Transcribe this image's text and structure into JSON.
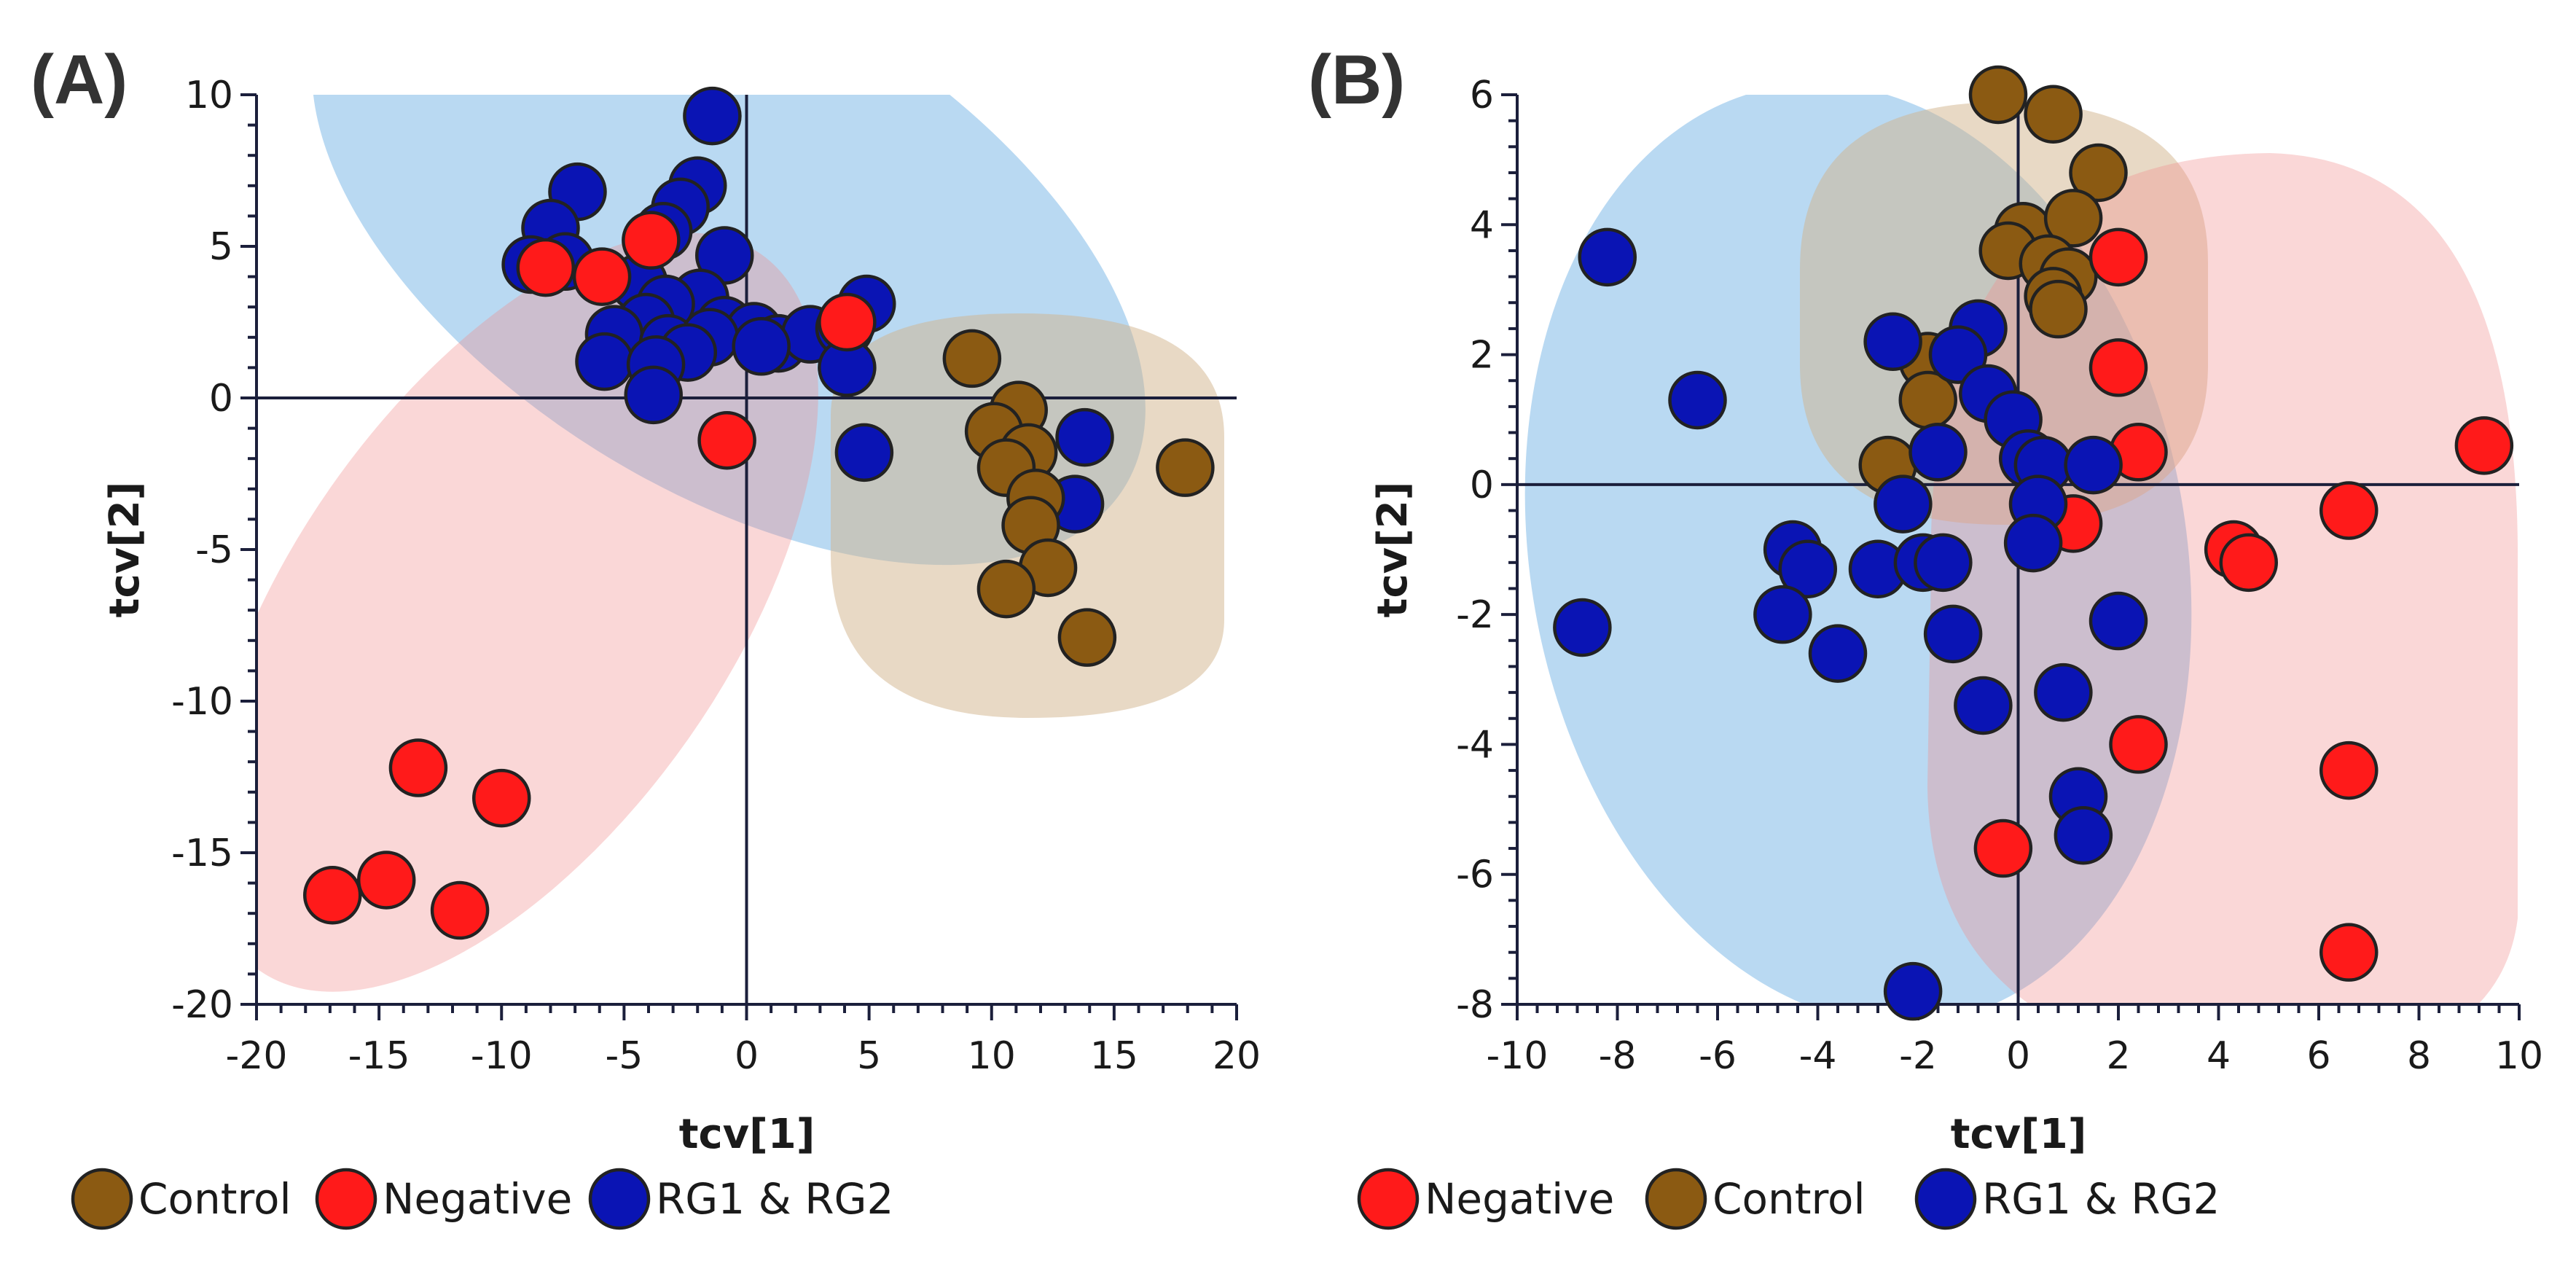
{
  "chart_data": [
    {
      "type": "scatter",
      "panel_label": "(A)",
      "xlabel": "tcv[1]",
      "ylabel": "tcv[2]",
      "xlim": [
        -20,
        20
      ],
      "ylim": [
        -20,
        10
      ],
      "xticks": [
        -20,
        -15,
        -10,
        -5,
        0,
        5,
        10,
        15,
        20
      ],
      "yticks": [
        10,
        5,
        0,
        -5,
        -10,
        -15,
        -20
      ],
      "colors": {
        "Control": "#8b5a12",
        "Negative": "#ff1a1a",
        "RG1 & RG2": "#0a14b4"
      },
      "legend": [
        "Control",
        "Negative",
        "RG1 & RG2"
      ],
      "legend_position": "bottom",
      "series": [
        {
          "name": "RG1 & RG2",
          "points": [
            [
              -1.4,
              9.3
            ],
            [
              -6.9,
              6.8
            ],
            [
              -8.0,
              5.6
            ],
            [
              -2.0,
              7.0
            ],
            [
              -2.7,
              6.3
            ],
            [
              -3.4,
              5.5
            ],
            [
              -0.9,
              4.7
            ],
            [
              -8.8,
              4.4
            ],
            [
              -7.4,
              4.5
            ],
            [
              -4.4,
              3.8
            ],
            [
              -1.9,
              3.3
            ],
            [
              -3.3,
              3.1
            ],
            [
              -4.1,
              2.5
            ],
            [
              -5.4,
              2.1
            ],
            [
              -3.2,
              1.8
            ],
            [
              -0.9,
              2.4
            ],
            [
              0.3,
              2.2
            ],
            [
              1.3,
              1.8
            ],
            [
              2.6,
              2.1
            ],
            [
              4.0,
              2.3
            ],
            [
              4.9,
              3.1
            ],
            [
              -1.5,
              2.0
            ],
            [
              -2.4,
              1.5
            ],
            [
              -5.8,
              1.2
            ],
            [
              -3.7,
              1.1
            ],
            [
              -3.8,
              0.1
            ],
            [
              0.6,
              1.7
            ],
            [
              4.1,
              1.0
            ],
            [
              4.8,
              -1.8
            ],
            [
              13.8,
              -1.3
            ],
            [
              13.4,
              -3.5
            ]
          ]
        },
        {
          "name": "Control",
          "points": [
            [
              9.2,
              1.3
            ],
            [
              11.1,
              -0.4
            ],
            [
              10.1,
              -1.1
            ],
            [
              11.5,
              -1.8
            ],
            [
              10.6,
              -2.3
            ],
            [
              17.9,
              -2.3
            ],
            [
              11.8,
              -3.3
            ],
            [
              11.6,
              -4.2
            ],
            [
              12.3,
              -5.6
            ],
            [
              10.6,
              -6.3
            ],
            [
              13.9,
              -7.9
            ]
          ]
        },
        {
          "name": "Negative",
          "points": [
            [
              -8.2,
              4.3
            ],
            [
              -5.9,
              4.0
            ],
            [
              -3.9,
              5.2
            ],
            [
              4.1,
              2.5
            ],
            [
              -0.8,
              -1.4
            ],
            [
              -13.4,
              -12.2
            ],
            [
              -10.0,
              -13.2
            ],
            [
              -16.9,
              -16.4
            ],
            [
              -14.7,
              -15.9
            ],
            [
              -11.7,
              -16.9
            ]
          ]
        }
      ]
    },
    {
      "type": "scatter",
      "panel_label": "(B)",
      "xlabel": "tcv[1]",
      "ylabel": "tcv[2]",
      "xlim": [
        -10,
        10
      ],
      "ylim": [
        -8,
        6
      ],
      "xticks": [
        -10,
        -8,
        -6,
        -4,
        -2,
        0,
        2,
        4,
        6,
        8,
        10
      ],
      "yticks": [
        6,
        4,
        2,
        0,
        -2,
        -4,
        -6,
        -8
      ],
      "colors": {
        "Negative": "#ff1a1a",
        "Control": "#8b5a12",
        "RG1 & RG2": "#0a14b4"
      },
      "legend": [
        "Negative",
        "Control",
        "RG1 & RG2"
      ],
      "legend_position": "bottom",
      "series": [
        {
          "name": "Control",
          "points": [
            [
              -0.4,
              6.0
            ],
            [
              0.7,
              5.7
            ],
            [
              1.6,
              4.8
            ],
            [
              0.1,
              3.9
            ],
            [
              1.1,
              4.1
            ],
            [
              -0.2,
              3.6
            ],
            [
              0.6,
              3.4
            ],
            [
              1.0,
              3.2
            ],
            [
              0.7,
              2.9
            ],
            [
              0.8,
              2.7
            ],
            [
              -1.8,
              1.9
            ],
            [
              -1.8,
              1.3
            ],
            [
              -2.6,
              0.3
            ]
          ]
        },
        {
          "name": "Negative",
          "points": [
            [
              2.0,
              3.5
            ],
            [
              2.0,
              1.8
            ],
            [
              2.4,
              0.5
            ],
            [
              9.3,
              0.6
            ],
            [
              6.6,
              -0.4
            ],
            [
              1.1,
              -0.6
            ],
            [
              4.3,
              -1.0
            ],
            [
              4.6,
              -1.2
            ],
            [
              2.4,
              -4.0
            ],
            [
              6.6,
              -4.4
            ],
            [
              -0.3,
              -5.6
            ],
            [
              6.6,
              -7.2
            ]
          ]
        },
        {
          "name": "RG1 & RG2",
          "points": [
            [
              -8.2,
              3.5
            ],
            [
              -2.5,
              2.2
            ],
            [
              -6.4,
              1.3
            ],
            [
              -0.8,
              2.4
            ],
            [
              -1.2,
              2.0
            ],
            [
              -0.6,
              1.4
            ],
            [
              -0.1,
              1.0
            ],
            [
              -1.6,
              0.5
            ],
            [
              0.2,
              0.4
            ],
            [
              0.5,
              0.3
            ],
            [
              1.5,
              0.3
            ],
            [
              -2.3,
              -0.3
            ],
            [
              0.4,
              -0.3
            ],
            [
              -4.5,
              -1.0
            ],
            [
              0.3,
              -0.9
            ],
            [
              -4.2,
              -1.3
            ],
            [
              -2.8,
              -1.3
            ],
            [
              -1.9,
              -1.2
            ],
            [
              -1.5,
              -1.2
            ],
            [
              -8.7,
              -2.2
            ],
            [
              -4.7,
              -2.0
            ],
            [
              -1.3,
              -2.3
            ],
            [
              2.0,
              -2.1
            ],
            [
              -3.6,
              -2.6
            ],
            [
              -0.7,
              -3.4
            ],
            [
              0.9,
              -3.2
            ],
            [
              1.2,
              -4.8
            ],
            [
              1.3,
              -5.4
            ],
            [
              -2.1,
              -7.8
            ]
          ]
        }
      ]
    }
  ]
}
